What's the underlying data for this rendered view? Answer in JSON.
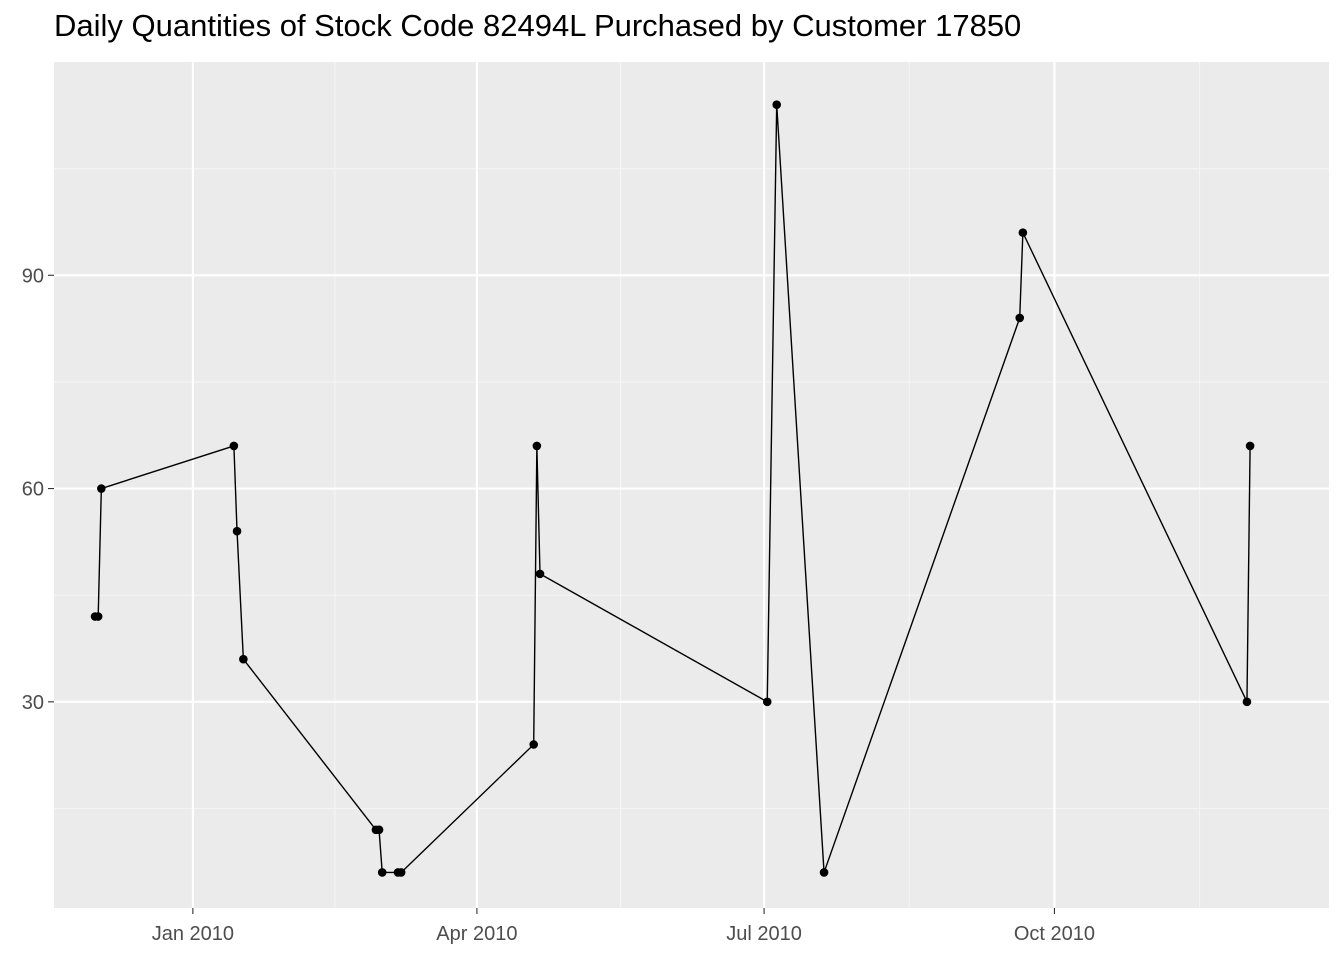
{
  "chart_data": {
    "type": "line",
    "title": "Daily Quantities of Stock Code 82494L Purchased by Customer 17850",
    "xlabel": "",
    "ylabel": "",
    "x_axis_kind": "date",
    "x_ticks": [
      {
        "date": "2010-01-01",
        "label": "Jan 2010"
      },
      {
        "date": "2010-04-01",
        "label": "Apr 2010"
      },
      {
        "date": "2010-07-01",
        "label": "Jul 2010"
      },
      {
        "date": "2010-10-01",
        "label": "Oct 2010"
      }
    ],
    "y_ticks": [
      30,
      60,
      90
    ],
    "xlim": [
      "2009-11-18",
      "2010-12-27"
    ],
    "ylim": [
      1,
      120
    ],
    "grid": true,
    "legend": "none",
    "series": [
      {
        "points": [
          {
            "x": "2009-12-01",
            "y": 42
          },
          {
            "x": "2009-12-02",
            "y": 42
          },
          {
            "x": "2009-12-03",
            "y": 60
          },
          {
            "x": "2010-01-14",
            "y": 66
          },
          {
            "x": "2010-01-15",
            "y": 54
          },
          {
            "x": "2010-01-17",
            "y": 36
          },
          {
            "x": "2010-02-28",
            "y": 12
          },
          {
            "x": "2010-03-01",
            "y": 12
          },
          {
            "x": "2010-03-02",
            "y": 6
          },
          {
            "x": "2010-03-07",
            "y": 6
          },
          {
            "x": "2010-03-08",
            "y": 6
          },
          {
            "x": "2010-04-19",
            "y": 24
          },
          {
            "x": "2010-04-20",
            "y": 66
          },
          {
            "x": "2010-04-21",
            "y": 48
          },
          {
            "x": "2010-07-02",
            "y": 30
          },
          {
            "x": "2010-07-05",
            "y": 114
          },
          {
            "x": "2010-07-20",
            "y": 6
          },
          {
            "x": "2010-09-20",
            "y": 84
          },
          {
            "x": "2010-09-21",
            "y": 96
          },
          {
            "x": "2010-12-01",
            "y": 30
          },
          {
            "x": "2010-12-02",
            "y": 66
          }
        ]
      }
    ],
    "colors": {
      "panel_background": "#ebebeb",
      "grid_major": "#ffffff",
      "grid_minor": "#f5f5f5",
      "line": "#000000",
      "points": "#000000",
      "tick_text": "#4d4d4d"
    }
  }
}
